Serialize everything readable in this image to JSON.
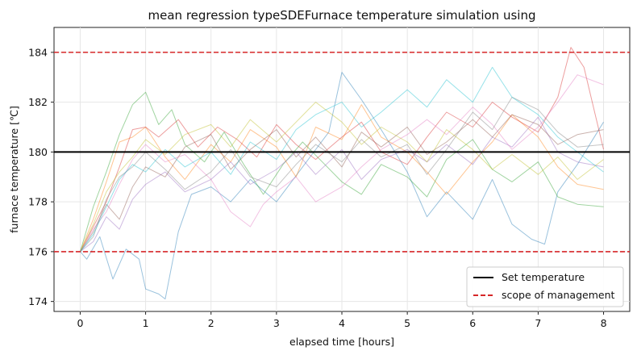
{
  "chart_data": {
    "type": "line",
    "title": "mean regression typeSDEFurnace temperature simulation using",
    "xlabel": "elapsed time [hours]",
    "ylabel": "furnace temperature [℃]",
    "xlim": [
      -0.4,
      8.4
    ],
    "ylim": [
      173.6,
      185.0
    ],
    "x_ticks": [
      0,
      1,
      2,
      3,
      4,
      5,
      6,
      7,
      8
    ],
    "y_ticks": [
      174,
      176,
      178,
      180,
      182,
      184
    ],
    "grid": true,
    "legend_position": "bottom-right",
    "reference_lines": [
      {
        "name": "Set temperature",
        "y": 180,
        "style": "solid",
        "color": "#000000"
      },
      {
        "name": "scope of management",
        "y": 176,
        "style": "dashed",
        "color": "#d62728"
      },
      {
        "name": "scope of management",
        "y": 184,
        "style": "dashed",
        "color": "#d62728"
      }
    ],
    "legend": [
      {
        "label": "Set temperature",
        "style": "solid",
        "color": "#000000"
      },
      {
        "label": "scope of management",
        "style": "dashed",
        "color": "#d62728"
      }
    ],
    "series": [
      {
        "color": "#1f77b4",
        "values": [
          [
            0,
            176
          ],
          [
            0.1,
            175.7
          ],
          [
            0.3,
            176.6
          ],
          [
            0.5,
            174.9
          ],
          [
            0.7,
            176.1
          ],
          [
            0.9,
            175.7
          ],
          [
            1.0,
            174.5
          ],
          [
            1.2,
            174.3
          ],
          [
            1.3,
            174.1
          ],
          [
            1.5,
            176.8
          ],
          [
            1.7,
            178.3
          ],
          [
            2.0,
            178.6
          ],
          [
            2.3,
            178.0
          ],
          [
            2.6,
            178.9
          ],
          [
            3.0,
            178.0
          ],
          [
            3.4,
            179.4
          ],
          [
            3.8,
            180.8
          ],
          [
            4.0,
            183.2
          ],
          [
            4.3,
            182.1
          ],
          [
            4.6,
            180.9
          ],
          [
            5.0,
            179.2
          ],
          [
            5.3,
            177.4
          ],
          [
            5.6,
            178.4
          ],
          [
            6.0,
            177.3
          ],
          [
            6.3,
            178.9
          ],
          [
            6.6,
            177.1
          ],
          [
            6.9,
            176.5
          ],
          [
            7.1,
            176.3
          ],
          [
            7.3,
            178.4
          ],
          [
            7.6,
            179.5
          ],
          [
            8.0,
            181.2
          ]
        ]
      },
      {
        "color": "#ff7f0e",
        "values": [
          [
            0,
            176
          ],
          [
            0.2,
            177.3
          ],
          [
            0.4,
            178.8
          ],
          [
            0.6,
            180.4
          ],
          [
            0.8,
            180.6
          ],
          [
            1.0,
            181.0
          ],
          [
            1.3,
            179.8
          ],
          [
            1.6,
            178.9
          ],
          [
            2.0,
            180.3
          ],
          [
            2.3,
            179.6
          ],
          [
            2.6,
            180.9
          ],
          [
            3.0,
            180.2
          ],
          [
            3.3,
            179.0
          ],
          [
            3.6,
            181.0
          ],
          [
            4.0,
            180.5
          ],
          [
            4.3,
            181.9
          ],
          [
            4.6,
            180.6
          ],
          [
            5.0,
            180.0
          ],
          [
            5.3,
            179.2
          ],
          [
            5.6,
            178.3
          ],
          [
            6.0,
            179.6
          ],
          [
            6.3,
            180.4
          ],
          [
            6.6,
            181.5
          ],
          [
            7.0,
            180.6
          ],
          [
            7.3,
            179.4
          ],
          [
            7.6,
            178.7
          ],
          [
            8.0,
            178.5
          ]
        ]
      },
      {
        "color": "#2ca02c",
        "values": [
          [
            0,
            176
          ],
          [
            0.2,
            177.8
          ],
          [
            0.4,
            179.2
          ],
          [
            0.6,
            180.7
          ],
          [
            0.8,
            181.9
          ],
          [
            1.0,
            182.4
          ],
          [
            1.2,
            181.1
          ],
          [
            1.4,
            181.7
          ],
          [
            1.6,
            180.3
          ],
          [
            1.9,
            179.6
          ],
          [
            2.2,
            180.8
          ],
          [
            2.5,
            179.5
          ],
          [
            2.8,
            178.3
          ],
          [
            3.1,
            179.5
          ],
          [
            3.4,
            180.4
          ],
          [
            3.7,
            179.6
          ],
          [
            4.0,
            178.8
          ],
          [
            4.3,
            178.3
          ],
          [
            4.6,
            179.5
          ],
          [
            5.0,
            179.0
          ],
          [
            5.3,
            178.2
          ],
          [
            5.6,
            179.7
          ],
          [
            6.0,
            180.5
          ],
          [
            6.3,
            179.3
          ],
          [
            6.6,
            178.8
          ],
          [
            7.0,
            179.6
          ],
          [
            7.3,
            178.2
          ],
          [
            7.6,
            177.9
          ],
          [
            8.0,
            177.8
          ]
        ]
      },
      {
        "color": "#d62728",
        "values": [
          [
            0,
            176
          ],
          [
            0.2,
            177.0
          ],
          [
            0.4,
            178.0
          ],
          [
            0.6,
            179.4
          ],
          [
            0.8,
            180.9
          ],
          [
            1.0,
            181.0
          ],
          [
            1.2,
            180.6
          ],
          [
            1.5,
            181.3
          ],
          [
            1.8,
            180.2
          ],
          [
            2.1,
            181.0
          ],
          [
            2.4,
            180.5
          ],
          [
            2.7,
            179.8
          ],
          [
            3.0,
            181.1
          ],
          [
            3.3,
            180.3
          ],
          [
            3.6,
            179.7
          ],
          [
            4.0,
            180.6
          ],
          [
            4.3,
            181.2
          ],
          [
            4.6,
            180.0
          ],
          [
            5.0,
            179.5
          ],
          [
            5.3,
            180.6
          ],
          [
            5.6,
            181.6
          ],
          [
            6.0,
            181.0
          ],
          [
            6.3,
            182.0
          ],
          [
            6.6,
            181.4
          ],
          [
            7.0,
            180.8
          ],
          [
            7.3,
            182.2
          ],
          [
            7.5,
            184.2
          ],
          [
            7.7,
            183.4
          ],
          [
            8.0,
            180.1
          ]
        ]
      },
      {
        "color": "#9467bd",
        "values": [
          [
            0,
            176
          ],
          [
            0.2,
            176.4
          ],
          [
            0.4,
            177.4
          ],
          [
            0.6,
            176.9
          ],
          [
            0.8,
            178.1
          ],
          [
            1.0,
            178.7
          ],
          [
            1.3,
            179.2
          ],
          [
            1.6,
            178.4
          ],
          [
            2.0,
            178.9
          ],
          [
            2.3,
            179.6
          ],
          [
            2.6,
            178.7
          ],
          [
            3.0,
            179.3
          ],
          [
            3.3,
            180.0
          ],
          [
            3.6,
            179.1
          ],
          [
            4.0,
            180.1
          ],
          [
            4.3,
            178.9
          ],
          [
            4.6,
            179.7
          ],
          [
            5.0,
            180.1
          ],
          [
            5.3,
            179.6
          ],
          [
            5.6,
            180.3
          ],
          [
            6.0,
            179.5
          ],
          [
            6.3,
            180.6
          ],
          [
            6.6,
            180.2
          ],
          [
            7.0,
            181.4
          ],
          [
            7.3,
            180.0
          ],
          [
            7.6,
            179.6
          ],
          [
            8.0,
            179.4
          ]
        ]
      },
      {
        "color": "#8c564b",
        "values": [
          [
            0,
            176
          ],
          [
            0.2,
            176.8
          ],
          [
            0.4,
            177.9
          ],
          [
            0.6,
            177.3
          ],
          [
            0.8,
            178.6
          ],
          [
            1.0,
            179.4
          ],
          [
            1.3,
            179.0
          ],
          [
            1.6,
            180.2
          ],
          [
            2.0,
            180.7
          ],
          [
            2.3,
            179.3
          ],
          [
            2.6,
            180.1
          ],
          [
            3.0,
            180.9
          ],
          [
            3.3,
            179.8
          ],
          [
            3.6,
            180.6
          ],
          [
            4.0,
            179.4
          ],
          [
            4.3,
            180.8
          ],
          [
            4.6,
            180.2
          ],
          [
            5.0,
            181.0
          ],
          [
            5.3,
            179.9
          ],
          [
            5.6,
            180.4
          ],
          [
            6.0,
            181.3
          ],
          [
            6.3,
            180.6
          ],
          [
            6.6,
            181.5
          ],
          [
            7.0,
            181.1
          ],
          [
            7.3,
            180.3
          ],
          [
            7.6,
            180.7
          ],
          [
            8.0,
            180.9
          ]
        ]
      },
      {
        "color": "#e377c2",
        "values": [
          [
            0,
            176
          ],
          [
            0.2,
            176.9
          ],
          [
            0.4,
            177.6
          ],
          [
            0.6,
            178.7
          ],
          [
            0.8,
            179.7
          ],
          [
            1.0,
            180.3
          ],
          [
            1.3,
            179.6
          ],
          [
            1.6,
            179.9
          ],
          [
            2.0,
            178.9
          ],
          [
            2.3,
            177.6
          ],
          [
            2.6,
            177.0
          ],
          [
            2.8,
            177.9
          ],
          [
            3.0,
            178.4
          ],
          [
            3.3,
            179.0
          ],
          [
            3.6,
            178.0
          ],
          [
            4.0,
            178.6
          ],
          [
            4.3,
            179.4
          ],
          [
            4.6,
            180.1
          ],
          [
            5.0,
            180.7
          ],
          [
            5.3,
            181.3
          ],
          [
            5.6,
            180.7
          ],
          [
            6.0,
            181.8
          ],
          [
            6.3,
            181.1
          ],
          [
            6.6,
            180.1
          ],
          [
            7.0,
            181.0
          ],
          [
            7.3,
            182.0
          ],
          [
            7.6,
            183.1
          ],
          [
            8.0,
            182.7
          ]
        ]
      },
      {
        "color": "#7f7f7f",
        "values": [
          [
            0,
            176
          ],
          [
            0.2,
            176.6
          ],
          [
            0.4,
            178.1
          ],
          [
            0.6,
            179.0
          ],
          [
            0.8,
            179.4
          ],
          [
            1.0,
            180.0
          ],
          [
            1.3,
            179.3
          ],
          [
            1.6,
            178.5
          ],
          [
            2.0,
            179.2
          ],
          [
            2.3,
            180.1
          ],
          [
            2.6,
            179.0
          ],
          [
            3.0,
            178.6
          ],
          [
            3.3,
            179.5
          ],
          [
            3.6,
            180.3
          ],
          [
            4.0,
            179.6
          ],
          [
            4.3,
            180.5
          ],
          [
            4.6,
            179.8
          ],
          [
            5.0,
            180.3
          ],
          [
            5.3,
            179.1
          ],
          [
            5.6,
            180.1
          ],
          [
            6.0,
            181.6
          ],
          [
            6.3,
            180.9
          ],
          [
            6.6,
            182.2
          ],
          [
            7.0,
            181.7
          ],
          [
            7.3,
            180.8
          ],
          [
            7.6,
            180.2
          ],
          [
            8.0,
            180.3
          ]
        ]
      },
      {
        "color": "#bcbd22",
        "values": [
          [
            0,
            176
          ],
          [
            0.2,
            177.1
          ],
          [
            0.4,
            178.4
          ],
          [
            0.6,
            179.2
          ],
          [
            0.8,
            179.8
          ],
          [
            1.0,
            180.5
          ],
          [
            1.3,
            179.9
          ],
          [
            1.6,
            180.7
          ],
          [
            2.0,
            181.1
          ],
          [
            2.3,
            180.2
          ],
          [
            2.6,
            181.3
          ],
          [
            3.0,
            180.4
          ],
          [
            3.3,
            181.2
          ],
          [
            3.6,
            182.0
          ],
          [
            4.0,
            181.2
          ],
          [
            4.3,
            180.3
          ],
          [
            4.6,
            181.0
          ],
          [
            5.0,
            180.4
          ],
          [
            5.3,
            179.6
          ],
          [
            5.6,
            180.9
          ],
          [
            6.0,
            180.1
          ],
          [
            6.3,
            179.3
          ],
          [
            6.6,
            179.9
          ],
          [
            7.0,
            179.1
          ],
          [
            7.3,
            179.8
          ],
          [
            7.6,
            178.9
          ],
          [
            8.0,
            179.7
          ]
        ]
      },
      {
        "color": "#17becf",
        "values": [
          [
            0,
            176
          ],
          [
            0.2,
            176.7
          ],
          [
            0.4,
            177.8
          ],
          [
            0.6,
            178.9
          ],
          [
            0.8,
            179.5
          ],
          [
            1.0,
            179.2
          ],
          [
            1.3,
            180.1
          ],
          [
            1.6,
            179.4
          ],
          [
            2.0,
            180.0
          ],
          [
            2.3,
            179.1
          ],
          [
            2.6,
            180.4
          ],
          [
            3.0,
            179.7
          ],
          [
            3.3,
            180.9
          ],
          [
            3.6,
            181.5
          ],
          [
            4.0,
            182.0
          ],
          [
            4.3,
            181.0
          ],
          [
            4.6,
            181.6
          ],
          [
            5.0,
            182.5
          ],
          [
            5.3,
            181.8
          ],
          [
            5.6,
            182.9
          ],
          [
            6.0,
            182.0
          ],
          [
            6.3,
            183.4
          ],
          [
            6.6,
            182.2
          ],
          [
            7.0,
            181.5
          ],
          [
            7.3,
            180.6
          ],
          [
            7.6,
            180.0
          ],
          [
            8.0,
            179.2
          ]
        ]
      }
    ]
  }
}
